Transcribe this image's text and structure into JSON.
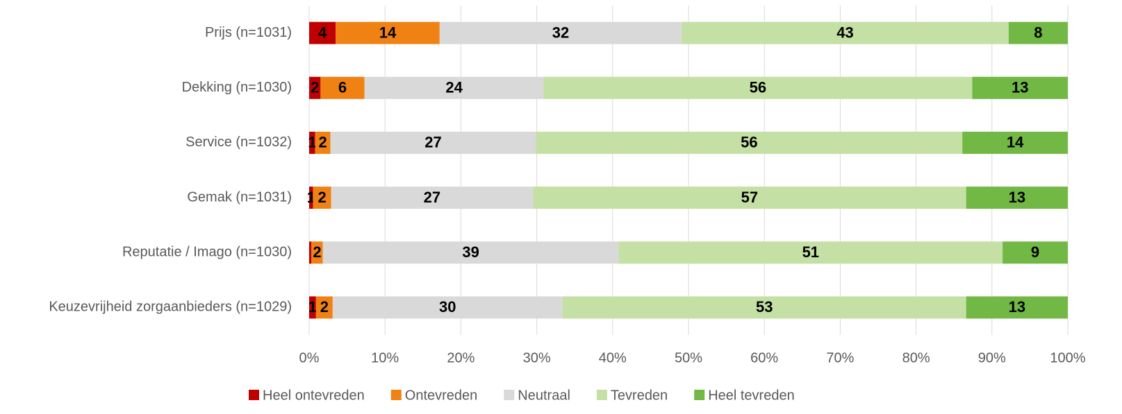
{
  "chart_data": {
    "type": "stacked-barh",
    "categories": [
      "Prijs (n=1031)",
      "Dekking (n=1030)",
      "Service (n=1032)",
      "Gemak (n=1031)",
      "Reputatie / Imago (n=1030)",
      "Keuzevrijheid zorgaanbieders (n=1029)"
    ],
    "series": [
      {
        "name": "Heel ontevreden",
        "color": "#c00000",
        "values": [
          3.5,
          1.5,
          0.8,
          0.5,
          0.3,
          0.9
        ],
        "value_labels": [
          "4",
          "2",
          "1",
          "1",
          null,
          "1"
        ]
      },
      {
        "name": "Ontevreden",
        "color": "#f08214",
        "values": [
          13.7,
          5.8,
          2.0,
          2.4,
          1.5,
          2.2
        ],
        "value_labels": [
          "14",
          "6",
          "2",
          "2",
          "2",
          "2"
        ]
      },
      {
        "name": "Neutraal",
        "color": "#d9d9d9",
        "values": [
          31.9,
          23.6,
          27.1,
          26.6,
          39.0,
          30.3
        ],
        "value_labels": [
          "32",
          "24",
          "27",
          "27",
          "39",
          "30"
        ]
      },
      {
        "name": "Tevreden",
        "color": "#c5e0a5",
        "values": [
          43.1,
          56.5,
          56.2,
          57.1,
          50.6,
          53.2
        ],
        "value_labels": [
          "43",
          "56",
          "56",
          "57",
          "51",
          "53"
        ]
      },
      {
        "name": "Heel tevreden",
        "color": "#72b845",
        "values": [
          7.8,
          12.6,
          13.9,
          13.4,
          8.6,
          13.4
        ],
        "value_labels": [
          "8",
          "13",
          "14",
          "13",
          "9",
          "13"
        ]
      }
    ],
    "xlim": [
      0,
      100
    ],
    "xticks": [
      {
        "value": 0,
        "label": "0%"
      },
      {
        "value": 10,
        "label": "10%"
      },
      {
        "value": 20,
        "label": "20%"
      },
      {
        "value": 30,
        "label": "30%"
      },
      {
        "value": 40,
        "label": "40%"
      },
      {
        "value": 50,
        "label": "50%"
      },
      {
        "value": 60,
        "label": "60%"
      },
      {
        "value": 70,
        "label": "70%"
      },
      {
        "value": 80,
        "label": "80%"
      },
      {
        "value": 90,
        "label": "90%"
      },
      {
        "value": 100,
        "label": "100%"
      }
    ],
    "grid": true,
    "legend": "bottom"
  }
}
